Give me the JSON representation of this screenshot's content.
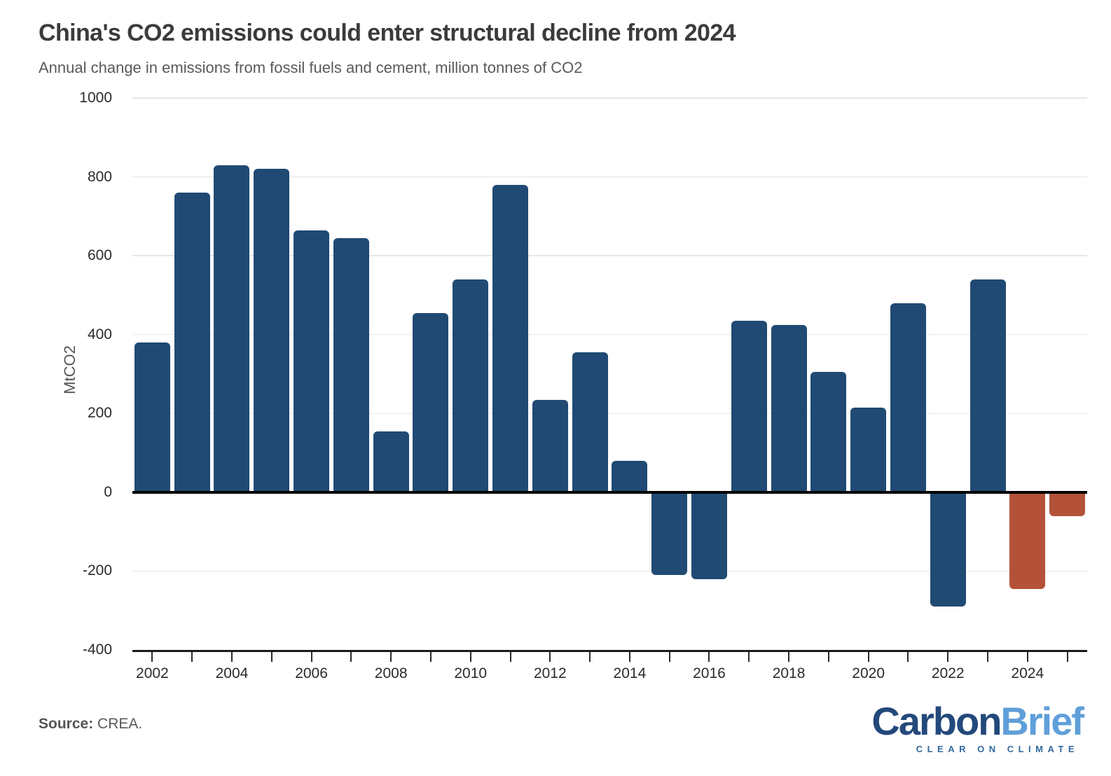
{
  "header": {
    "title": "China's CO2 emissions could enter structural decline from 2024",
    "subtitle": "Annual change in emissions from fossil fuels and cement, million tonnes of CO2"
  },
  "chart_data": {
    "type": "bar",
    "title": "China's CO2 emissions could enter structural decline from 2024",
    "subtitle": "Annual change in emissions from fossil fuels and cement, million tonnes of CO2",
    "xlabel": "",
    "ylabel": "MtCO2",
    "ylim": [
      -400,
      1000
    ],
    "yticks": [
      1000,
      800,
      600,
      400,
      200,
      0,
      -200,
      -400
    ],
    "grid": true,
    "legend": "none",
    "x_label_every_n_years": 2,
    "categories": [
      2002,
      2003,
      2004,
      2005,
      2006,
      2007,
      2008,
      2009,
      2010,
      2011,
      2012,
      2013,
      2014,
      2015,
      2016,
      2017,
      2018,
      2019,
      2020,
      2021,
      2022,
      2023,
      2024,
      2025
    ],
    "values": [
      380,
      760,
      830,
      820,
      665,
      645,
      155,
      455,
      540,
      780,
      235,
      355,
      80,
      -210,
      -220,
      435,
      425,
      305,
      215,
      480,
      -290,
      540,
      -245,
      -60
    ],
    "bar_color": "#204a73",
    "projection_color": "#b45139",
    "projection_years": [
      2024,
      2025
    ],
    "zero_line_color": "#000000",
    "gridline_color": "#e6e6e6"
  },
  "footer": {
    "source_label": "Source:",
    "source_text": "CREA."
  },
  "logo": {
    "word1": "Carbon",
    "word2": "Brief",
    "tagline": "CLEAR ON CLIMATE",
    "word1_color": "#23497b",
    "word2_color": "#5f9fd9",
    "tagline_color": "#33689f"
  }
}
